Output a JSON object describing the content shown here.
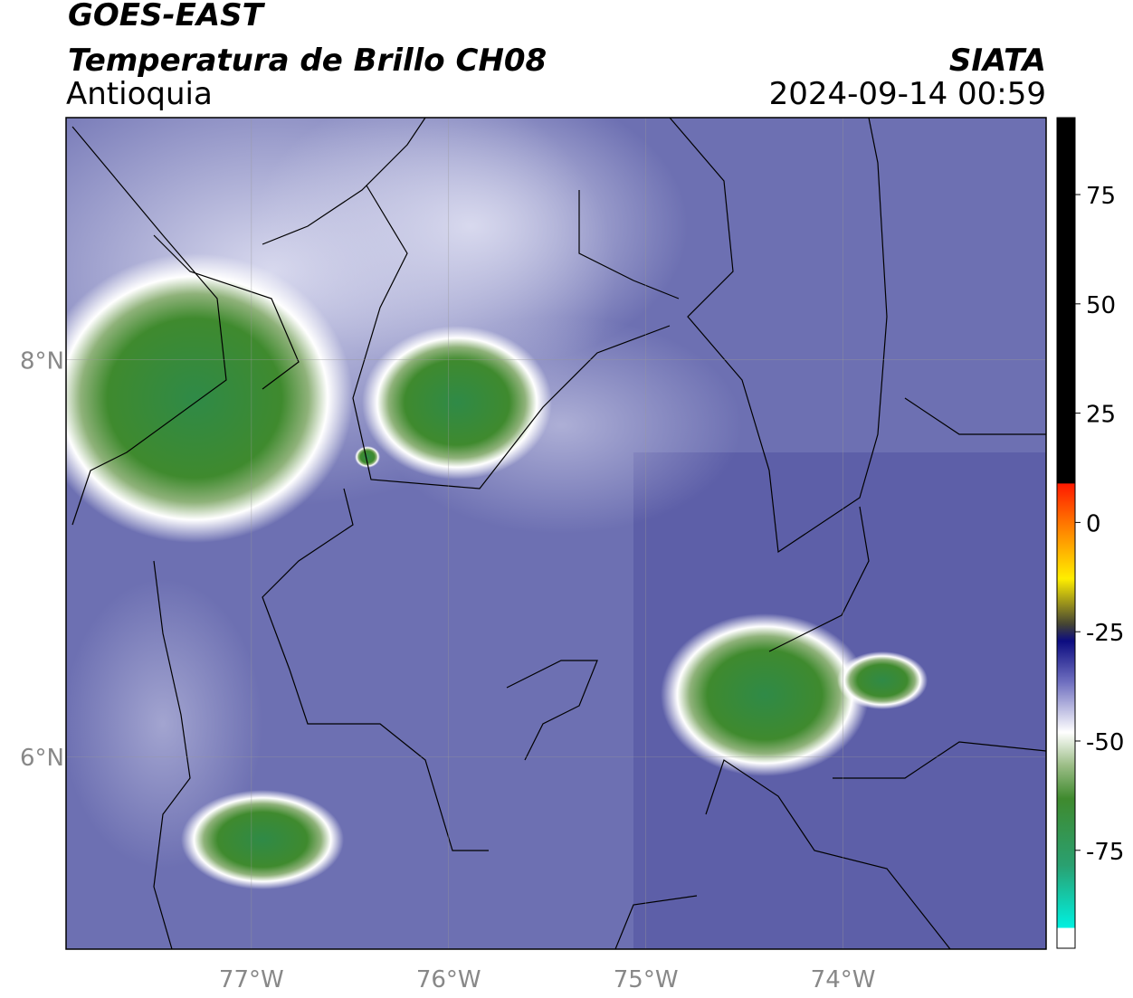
{
  "header": {
    "title": "GOES-EAST",
    "subtitle": "Temperatura de Brillo CH08",
    "region": "Antioquia",
    "source": "SIATA",
    "datetime": "2024-09-14 00:59"
  },
  "map": {
    "xlim": [
      -77.94,
      -72.97
    ],
    "ylim": [
      5.03,
      9.22
    ],
    "xticks": [
      {
        "value": -77,
        "label": "77°W"
      },
      {
        "value": -76,
        "label": "76°W"
      },
      {
        "value": -75,
        "label": "75°W"
      },
      {
        "value": -74,
        "label": "74°W"
      }
    ],
    "yticks": [
      {
        "value": 8,
        "label": "8°N"
      },
      {
        "value": 6,
        "label": "6°N"
      }
    ]
  },
  "colorbar": {
    "lim": [
      -97.4,
      92.6
    ],
    "ticks": [
      75,
      50,
      25,
      0,
      -25,
      -50,
      -75
    ]
  }
}
